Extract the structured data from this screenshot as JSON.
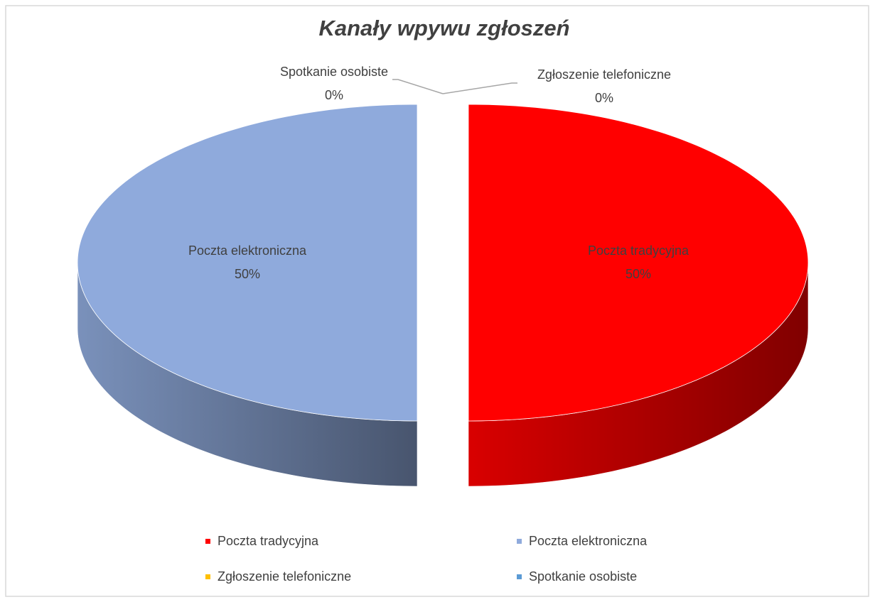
{
  "chart_data": {
    "type": "pie3d",
    "title": "Kanały wpywu zgłoszeń",
    "categories": [
      "Poczta tradycyjna",
      "Poczta elektroniczna",
      "Zgłoszenie telefoniczne",
      "Spotkanie osobiste"
    ],
    "values": [
      50,
      50,
      0,
      0
    ],
    "value_labels": [
      "50%",
      "50%",
      "0%",
      "0%"
    ],
    "colors": [
      "#ff0000",
      "#8faadc",
      "#ffc000",
      "#5b9bd5"
    ],
    "legend": "bottom"
  }
}
